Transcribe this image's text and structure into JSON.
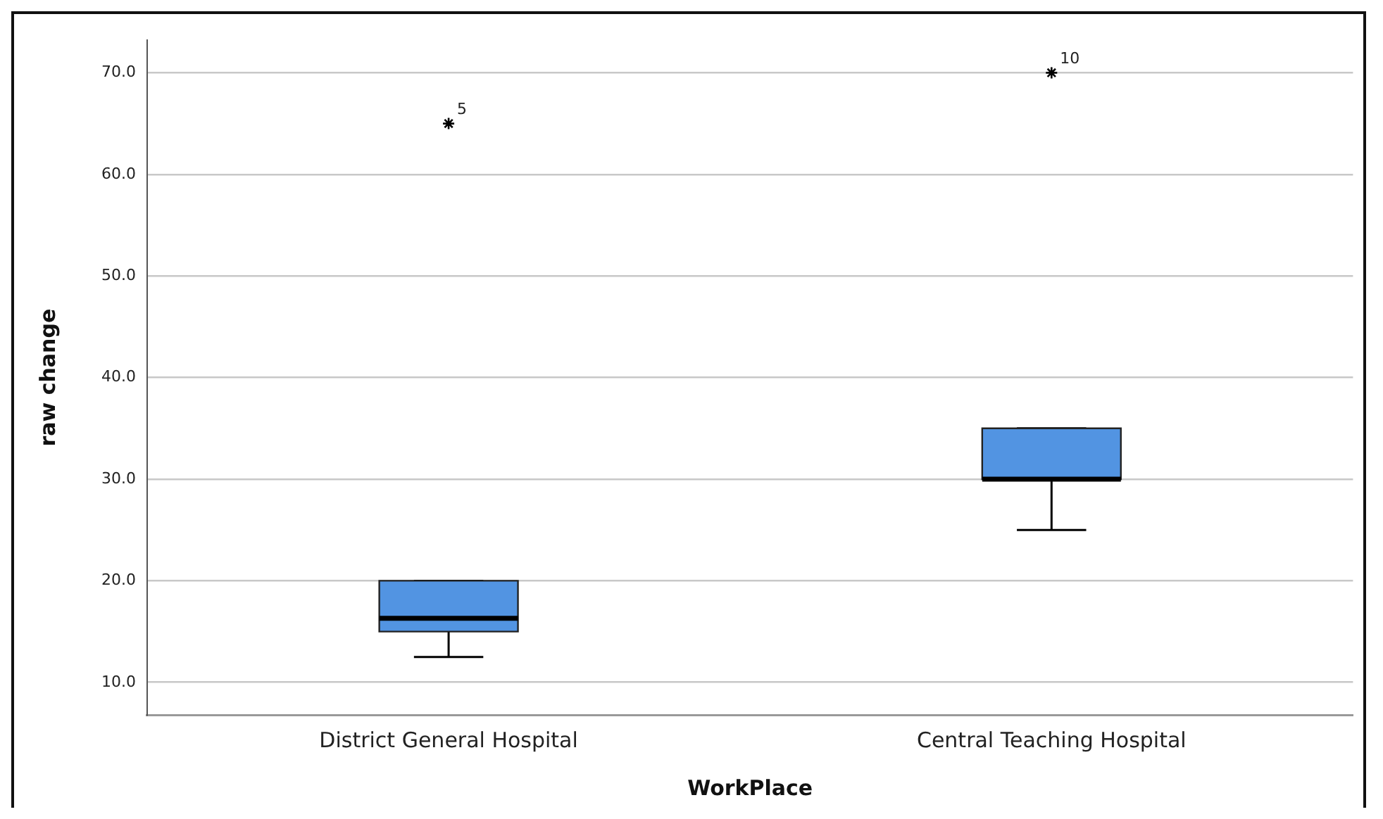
{
  "chart_data": {
    "type": "box",
    "xlabel": "WorkPlace",
    "ylabel": "raw change",
    "categories": [
      "District General Hospital",
      "Central Teaching Hospital"
    ],
    "boxes": [
      {
        "low": 12.5,
        "q1": 15,
        "median": 16.3,
        "q3": 20,
        "high": 20,
        "outliers": [
          65
        ]
      },
      {
        "low": 25,
        "q1": 30,
        "median": 30,
        "q3": 35,
        "high": 35,
        "outliers": [
          70
        ]
      }
    ],
    "color": "#5294e2",
    "marker": "star",
    "grid": "y",
    "legend": false,
    "ylim": [
      6.8,
      73.2
    ],
    "yticks": [
      {
        "value": 10,
        "label": "10.0"
      },
      {
        "value": 20,
        "label": "20.0"
      },
      {
        "value": 30,
        "label": "30.0"
      },
      {
        "value": 40,
        "label": "40.0"
      },
      {
        "value": 50,
        "label": "50.0"
      },
      {
        "value": 60,
        "label": "60.0"
      },
      {
        "value": 70,
        "label": "70.0"
      }
    ],
    "annotations": [
      "5",
      "10"
    ]
  }
}
